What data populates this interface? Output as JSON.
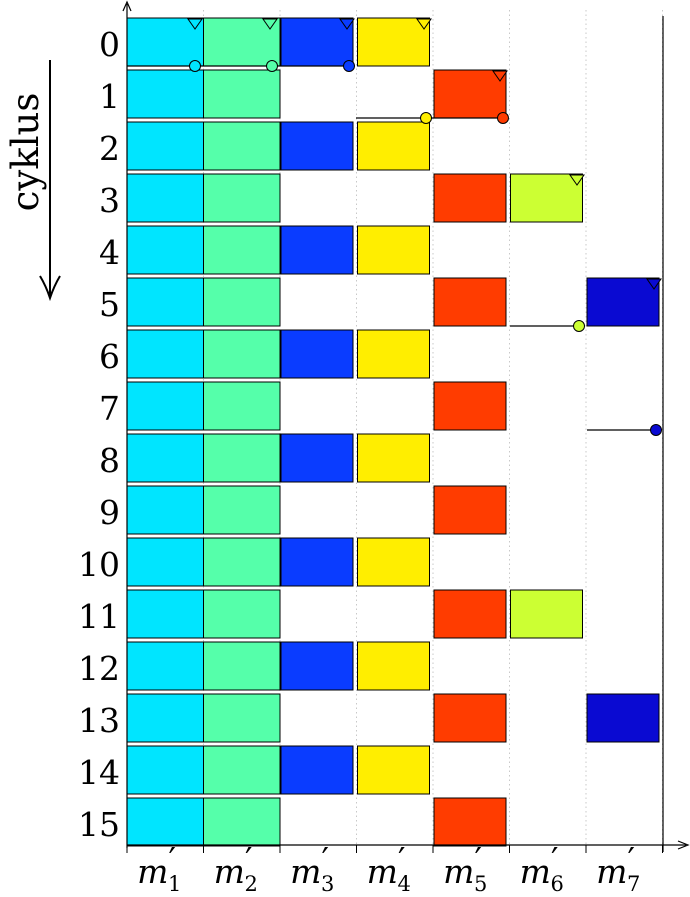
{
  "axis_label": "cyklus",
  "cycles": [
    "0",
    "1",
    "2",
    "3",
    "4",
    "5",
    "6",
    "7",
    "8",
    "9",
    "10",
    "11",
    "12",
    "13",
    "14",
    "15"
  ],
  "machines": [
    {
      "base": "m",
      "sub": "1",
      "prime": "′"
    },
    {
      "base": "m",
      "sub": "2",
      "prime": "′"
    },
    {
      "base": "m",
      "sub": "3",
      "prime": "′"
    },
    {
      "base": "m",
      "sub": "4",
      "prime": "′"
    },
    {
      "base": "m",
      "sub": "5",
      "prime": "′"
    },
    {
      "base": "m",
      "sub": "6",
      "prime": "′"
    },
    {
      "base": "m",
      "sub": "7",
      "prime": "′"
    }
  ],
  "colors": {
    "m1": "#00e5ff",
    "m2": "#55ffaa",
    "m3": "#0a3cff",
    "m4": "#ffee00",
    "m5": "#ff3c00",
    "m6": "#ccff33",
    "m7": "#0a0ad2"
  },
  "schedule": [
    {
      "machine": 1,
      "start_cycle": 0,
      "period": 1
    },
    {
      "machine": 2,
      "start_cycle": 0,
      "period": 1
    },
    {
      "machine": 3,
      "start_cycle": 0,
      "period": 2
    },
    {
      "machine": 4,
      "start_cycle": 0,
      "period": 2
    },
    {
      "machine": 5,
      "start_cycle": 1,
      "period": 2
    },
    {
      "machine": 6,
      "start_cycle": 3,
      "period": 8
    },
    {
      "machine": 7,
      "start_cycle": 5,
      "period": 8
    }
  ]
}
